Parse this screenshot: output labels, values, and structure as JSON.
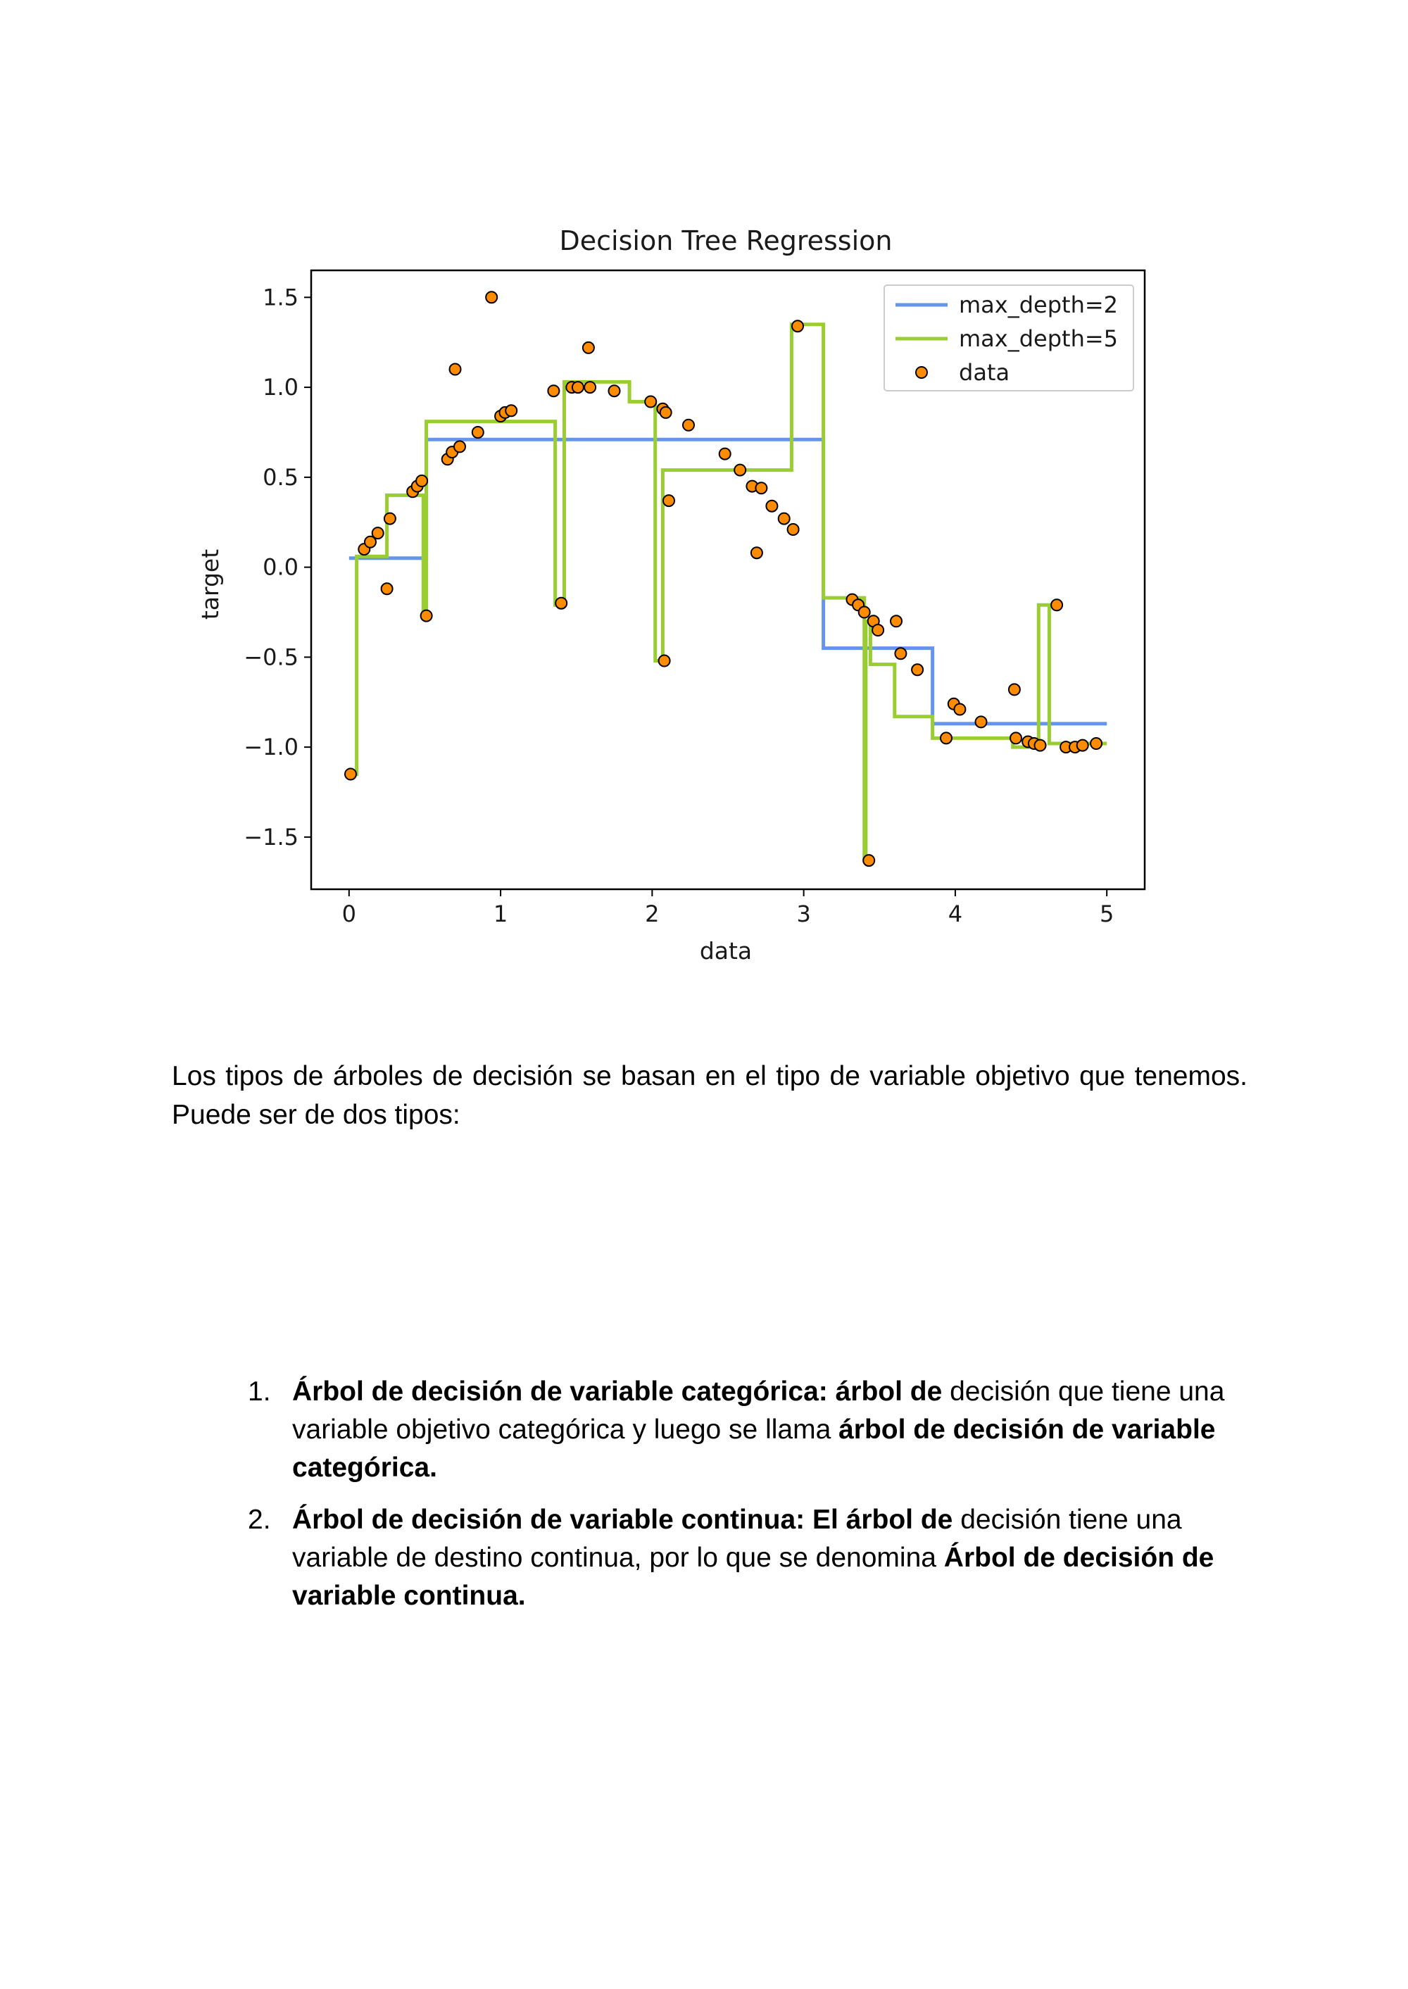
{
  "chart_data": {
    "type": "line",
    "title": "Decision Tree Regression",
    "xlabel": "data",
    "ylabel": "target",
    "xlim": [
      -0.25,
      5.25
    ],
    "ylim": [
      -1.79,
      1.65
    ],
    "xticks": [
      0,
      1,
      2,
      3,
      4,
      5
    ],
    "xtick_labels": [
      "0",
      "1",
      "2",
      "3",
      "4",
      "5"
    ],
    "yticks": [
      1.5,
      1.0,
      0.5,
      0.0,
      -0.5,
      -1.0,
      -1.5
    ],
    "ytick_labels": [
      "1.5",
      "1.0",
      "0.5",
      "0.0",
      "−0.5",
      "−1.0",
      "−1.5"
    ],
    "grid": false,
    "legend_position": "top-right",
    "colors": {
      "depth2": "#6495ED",
      "depth5": "#9ACD32",
      "points": "#FF8C00",
      "point_edge": "#000000"
    },
    "series": [
      {
        "name": "max_depth=2",
        "style": "line",
        "x": [
          0.0,
          0.51,
          0.51,
          3.13,
          3.13,
          3.85,
          3.85,
          5.0
        ],
        "y": [
          0.05,
          0.05,
          0.71,
          0.71,
          -0.45,
          -0.45,
          -0.87,
          -0.87
        ]
      },
      {
        "name": "max_depth=5",
        "style": "line",
        "x": [
          0.0,
          0.05,
          0.05,
          0.25,
          0.25,
          0.49,
          0.49,
          0.51,
          0.51,
          1.36,
          1.36,
          1.42,
          1.42,
          1.85,
          1.85,
          2.02,
          2.02,
          2.07,
          2.07,
          2.92,
          2.92,
          3.13,
          3.13,
          3.4,
          3.4,
          3.41,
          3.41,
          3.44,
          3.44,
          3.6,
          3.6,
          3.85,
          3.85,
          4.38,
          4.38,
          4.55,
          4.55,
          4.62,
          4.62,
          4.7,
          4.7,
          5.0
        ],
        "y": [
          -1.15,
          -1.15,
          0.06,
          0.06,
          0.4,
          0.4,
          -0.27,
          -0.27,
          0.81,
          0.81,
          -0.21,
          -0.21,
          1.03,
          1.03,
          0.92,
          0.92,
          -0.52,
          -0.52,
          0.54,
          0.54,
          1.35,
          1.35,
          -0.17,
          -0.17,
          -1.63,
          -1.63,
          -0.3,
          -0.3,
          -0.54,
          -0.54,
          -0.83,
          -0.83,
          -0.95,
          -0.95,
          -1.0,
          -1.0,
          -0.21,
          -0.21,
          -0.98,
          -0.98,
          -0.98,
          -0.98
        ]
      },
      {
        "name": "data",
        "style": "scatter",
        "points": [
          [
            0.01,
            -1.15
          ],
          [
            0.1,
            0.1
          ],
          [
            0.14,
            0.14
          ],
          [
            0.19,
            0.19
          ],
          [
            0.25,
            -0.12
          ],
          [
            0.27,
            0.27
          ],
          [
            0.42,
            0.42
          ],
          [
            0.45,
            0.45
          ],
          [
            0.48,
            0.48
          ],
          [
            0.51,
            -0.27
          ],
          [
            0.65,
            0.6
          ],
          [
            0.68,
            0.64
          ],
          [
            0.7,
            1.1
          ],
          [
            0.73,
            0.67
          ],
          [
            0.85,
            0.75
          ],
          [
            0.94,
            1.5
          ],
          [
            1.0,
            0.84
          ],
          [
            1.03,
            0.86
          ],
          [
            1.07,
            0.87
          ],
          [
            1.35,
            0.98
          ],
          [
            1.4,
            -0.2
          ],
          [
            1.47,
            1.0
          ],
          [
            1.51,
            1.0
          ],
          [
            1.58,
            1.22
          ],
          [
            1.59,
            1.0
          ],
          [
            1.75,
            0.98
          ],
          [
            1.99,
            0.92
          ],
          [
            2.07,
            0.88
          ],
          [
            2.08,
            -0.52
          ],
          [
            2.09,
            0.86
          ],
          [
            2.11,
            0.37
          ],
          [
            2.24,
            0.79
          ],
          [
            2.48,
            0.63
          ],
          [
            2.58,
            0.54
          ],
          [
            2.66,
            0.45
          ],
          [
            2.69,
            0.08
          ],
          [
            2.72,
            0.44
          ],
          [
            2.79,
            0.34
          ],
          [
            2.87,
            0.27
          ],
          [
            2.93,
            0.21
          ],
          [
            2.96,
            1.34
          ],
          [
            3.32,
            -0.18
          ],
          [
            3.36,
            -0.21
          ],
          [
            3.4,
            -0.25
          ],
          [
            3.43,
            -1.63
          ],
          [
            3.46,
            -0.3
          ],
          [
            3.49,
            -0.35
          ],
          [
            3.61,
            -0.3
          ],
          [
            3.64,
            -0.48
          ],
          [
            3.75,
            -0.57
          ],
          [
            3.94,
            -0.95
          ],
          [
            3.99,
            -0.76
          ],
          [
            4.03,
            -0.79
          ],
          [
            4.17,
            -0.86
          ],
          [
            4.39,
            -0.68
          ],
          [
            4.4,
            -0.95
          ],
          [
            4.48,
            -0.97
          ],
          [
            4.52,
            -0.98
          ],
          [
            4.56,
            -0.99
          ],
          [
            4.67,
            -0.21
          ],
          [
            4.73,
            -1.0
          ],
          [
            4.79,
            -1.0
          ],
          [
            4.84,
            -0.99
          ],
          [
            4.93,
            -0.98
          ]
        ]
      }
    ]
  },
  "paragraph": "Los tipos de árboles de decisión se basan en el tipo de variable objetivo que tenemos. Puede ser de dos tipos:",
  "list": [
    {
      "num": "1.",
      "bold1": "Árbol de decisión de variable categórica: árbol de",
      "text": " decisión que tiene una variable objetivo categórica y luego se llama ",
      "bold2": "árbol de decisión de variable categórica."
    },
    {
      "num": "2.",
      "bold1": "Árbol de decisión de variable continua: El árbol de",
      "text": " decisión tiene una variable de destino continua, por lo que se denomina ",
      "bold2": "Árbol de decisión de variable continua."
    }
  ]
}
